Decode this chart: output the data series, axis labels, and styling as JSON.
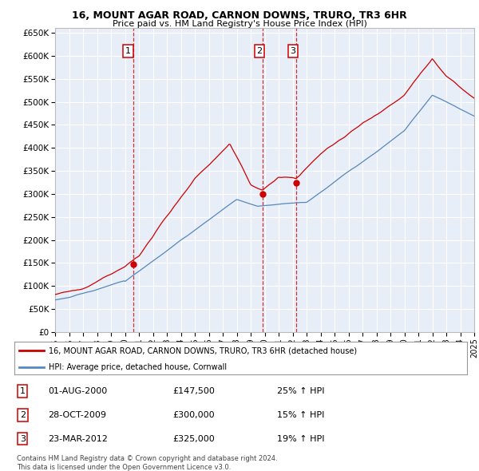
{
  "title": "16, MOUNT AGAR ROAD, CARNON DOWNS, TRURO, TR3 6HR",
  "subtitle": "Price paid vs. HM Land Registry's House Price Index (HPI)",
  "hpi_color": "#5588bb",
  "price_color": "#cc0000",
  "background_color": "#e8eef8",
  "grid_color": "#ffffff",
  "xlim": [
    1995,
    2025
  ],
  "ylim": [
    0,
    660000
  ],
  "yticks": [
    0,
    50000,
    100000,
    150000,
    200000,
    250000,
    300000,
    350000,
    400000,
    450000,
    500000,
    550000,
    600000,
    650000
  ],
  "ytick_labels": [
    "£0",
    "£50K",
    "£100K",
    "£150K",
    "£200K",
    "£250K",
    "£300K",
    "£350K",
    "£400K",
    "£450K",
    "£500K",
    "£550K",
    "£600K",
    "£650K"
  ],
  "purchases": [
    {
      "date_num": 2000.58,
      "price": 147500,
      "label": "1"
    },
    {
      "date_num": 2009.83,
      "price": 300000,
      "label": "2"
    },
    {
      "date_num": 2012.23,
      "price": 325000,
      "label": "3"
    }
  ],
  "legend_line1": "16, MOUNT AGAR ROAD, CARNON DOWNS, TRURO, TR3 6HR (detached house)",
  "legend_line2": "HPI: Average price, detached house, Cornwall",
  "table_rows": [
    {
      "num": "1",
      "date": "01-AUG-2000",
      "price": "£147,500",
      "hpi": "25% ↑ HPI"
    },
    {
      "num": "2",
      "date": "28-OCT-2009",
      "price": "£300,000",
      "hpi": "15% ↑ HPI"
    },
    {
      "num": "3",
      "date": "23-MAR-2012",
      "price": "£325,000",
      "hpi": "19% ↑ HPI"
    }
  ],
  "footnote1": "Contains HM Land Registry data © Crown copyright and database right 2024.",
  "footnote2": "This data is licensed under the Open Government Licence v3.0."
}
